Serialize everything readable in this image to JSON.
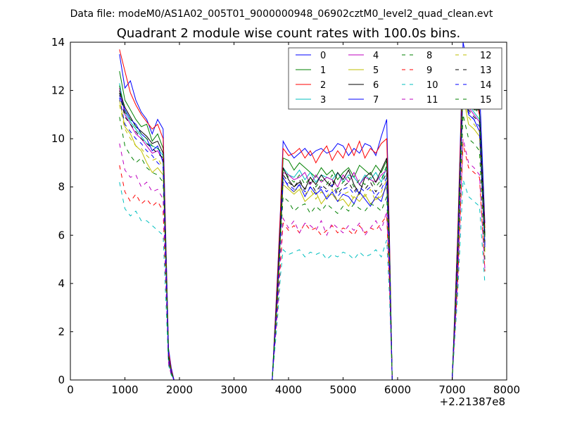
{
  "header": "Data file: modeM0/AS1A02_005T01_9000000948_06902cztM0_level2_quad_clean.evt",
  "chart_data": {
    "type": "line",
    "title": "Quadrant 2 module wise count rates with 100.0s bins.",
    "xlabel": "",
    "ylabel": "",
    "x_offset_label": "+2.21387e8",
    "xlim": [
      0,
      8000
    ],
    "ylim": [
      0,
      14
    ],
    "xticks": [
      "0",
      "1000",
      "2000",
      "3000",
      "4000",
      "5000",
      "6000",
      "7000",
      "8000"
    ],
    "yticks": [
      "0",
      "2",
      "4",
      "6",
      "8",
      "10",
      "12",
      "14"
    ],
    "legend_position": "top-right",
    "x": [
      900,
      1000,
      1100,
      1200,
      1300,
      1400,
      1500,
      1600,
      1700,
      1800,
      1850,
      1900,
      2000,
      3700,
      3800,
      3850,
      3900,
      4000,
      4100,
      4200,
      4300,
      4400,
      4500,
      4600,
      4700,
      4800,
      4900,
      5000,
      5100,
      5200,
      5300,
      5400,
      5500,
      5600,
      5700,
      5800,
      5850,
      5900,
      6000,
      7000,
      7100,
      7200,
      7300,
      7400,
      7500,
      7600
    ],
    "series": [
      {
        "name": "0",
        "color": "#0000ff",
        "dash": "solid",
        "values": [
          13.5,
          12.1,
          12.4,
          11.6,
          11.1,
          10.8,
          10.2,
          10.8,
          10.4,
          1.3,
          0.5,
          0,
          0,
          0,
          4.5,
          7.0,
          9.9,
          9.5,
          9.2,
          9.4,
          9.6,
          9.3,
          9.5,
          9.6,
          9.4,
          9.5,
          9.8,
          9.7,
          9.3,
          9.6,
          9.4,
          9.8,
          9.7,
          9.3,
          10.1,
          10.8,
          6.0,
          0,
          0,
          0,
          6.0,
          14.0,
          12.9,
          12.4,
          12.2,
          6.5
        ]
      },
      {
        "name": "1",
        "color": "#008000",
        "dash": "solid",
        "values": [
          12.8,
          11.6,
          11.2,
          10.8,
          10.5,
          10.6,
          9.9,
          10.2,
          9.6,
          1.0,
          0.3,
          0,
          0,
          0,
          4.0,
          6.6,
          9.2,
          9.1,
          8.7,
          9.0,
          8.8,
          8.6,
          8.4,
          8.8,
          8.5,
          8.7,
          8.3,
          8.6,
          8.8,
          8.4,
          8.9,
          8.7,
          8.5,
          8.9,
          8.6,
          9.1,
          5.5,
          0,
          0,
          0,
          5.5,
          13.1,
          11.6,
          11.3,
          11.2,
          6.0
        ]
      },
      {
        "name": "2",
        "color": "#ff0000",
        "dash": "solid",
        "values": [
          13.7,
          12.8,
          11.9,
          11.4,
          11.0,
          10.7,
          10.4,
          10.6,
          10.0,
          1.2,
          0.4,
          0,
          0,
          0,
          4.3,
          6.9,
          9.6,
          9.3,
          9.4,
          9.6,
          9.2,
          9.5,
          9.0,
          9.4,
          9.7,
          9.1,
          9.5,
          9.2,
          9.8,
          9.3,
          9.9,
          9.2,
          9.6,
          9.4,
          9.8,
          10.0,
          5.8,
          0,
          0,
          0,
          5.8,
          13.6,
          12.1,
          11.8,
          11.0,
          6.3
        ]
      },
      {
        "name": "3",
        "color": "#00bfbf",
        "dash": "solid",
        "values": [
          12.3,
          11.1,
          10.7,
          10.4,
          10.1,
          9.8,
          9.7,
          9.6,
          9.3,
          0.9,
          0.3,
          0,
          0,
          0,
          3.8,
          6.3,
          8.8,
          8.5,
          8.4,
          8.7,
          8.3,
          8.6,
          8.2,
          8.5,
          8.4,
          8.3,
          8.6,
          8.2,
          8.5,
          8.4,
          8.1,
          8.5,
          8.3,
          8.6,
          8.2,
          8.8,
          5.2,
          0,
          0,
          0,
          5.2,
          12.6,
          11.4,
          11.1,
          10.8,
          5.7
        ]
      },
      {
        "name": "4",
        "color": "#bf00bf",
        "dash": "solid",
        "values": [
          12.1,
          11.0,
          10.6,
          10.2,
          10.0,
          9.7,
          9.4,
          9.5,
          9.1,
          0.9,
          0.3,
          0,
          0,
          0,
          3.7,
          6.2,
          8.6,
          8.5,
          8.3,
          8.4,
          8.6,
          8.1,
          8.5,
          8.2,
          8.4,
          8.3,
          8.0,
          8.5,
          8.2,
          8.6,
          8.1,
          8.4,
          8.3,
          8.2,
          8.5,
          8.7,
          5.2,
          0,
          0,
          0,
          5.2,
          12.4,
          11.3,
          11.0,
          10.7,
          5.6
        ]
      },
      {
        "name": "5",
        "color": "#bfbf00",
        "dash": "solid",
        "values": [
          11.6,
          10.5,
          10.2,
          9.7,
          9.5,
          9.0,
          8.6,
          8.8,
          8.5,
          0.8,
          0.3,
          0,
          0,
          0,
          3.4,
          5.8,
          8.1,
          7.9,
          7.7,
          7.9,
          7.4,
          7.6,
          7.8,
          7.3,
          7.6,
          7.7,
          7.4,
          7.5,
          7.2,
          7.6,
          7.4,
          7.7,
          7.3,
          7.5,
          7.6,
          8.0,
          4.8,
          0,
          0,
          0,
          4.8,
          11.8,
          10.6,
          10.4,
          10.1,
          5.3
        ]
      },
      {
        "name": "6",
        "color": "#000000",
        "dash": "solid",
        "values": [
          12.0,
          11.3,
          10.9,
          10.5,
          10.3,
          10.1,
          9.8,
          9.9,
          9.4,
          1.0,
          0.3,
          0,
          0,
          0,
          3.9,
          6.4,
          8.8,
          8.3,
          8.0,
          8.2,
          7.9,
          8.4,
          8.1,
          8.5,
          8.2,
          8.0,
          8.6,
          8.3,
          8.7,
          8.1,
          7.7,
          8.4,
          8.6,
          8.2,
          8.7,
          9.2,
          5.4,
          0,
          0,
          0,
          5.4,
          12.8,
          11.5,
          11.2,
          11.2,
          6.0
        ]
      },
      {
        "name": "7",
        "color": "#0000ff",
        "dash": "solid",
        "values": [
          11.8,
          11.2,
          10.8,
          10.6,
          10.2,
          10.0,
          9.5,
          9.7,
          9.0,
          0.9,
          0.3,
          0,
          0,
          0,
          3.6,
          6.0,
          8.4,
          8.0,
          7.8,
          8.1,
          7.6,
          8.0,
          7.7,
          7.9,
          7.5,
          7.8,
          7.4,
          7.7,
          7.6,
          7.3,
          7.8,
          7.5,
          7.2,
          7.6,
          7.4,
          8.2,
          5.0,
          0,
          0,
          0,
          5.0,
          12.2,
          11.0,
          10.8,
          10.3,
          5.5
        ]
      },
      {
        "name": "8",
        "color": "#008000",
        "dash": "dashed",
        "values": [
          10.9,
          9.7,
          9.3,
          9.0,
          9.2,
          8.8,
          8.6,
          8.5,
          8.2,
          0.8,
          0.2,
          0,
          0,
          0,
          3.3,
          5.6,
          7.6,
          7.4,
          7.0,
          7.2,
          7.3,
          6.9,
          7.2,
          7.0,
          7.3,
          7.1,
          6.9,
          7.2,
          7.0,
          7.3,
          7.1,
          7.0,
          7.3,
          7.2,
          7.0,
          7.6,
          4.6,
          0,
          0,
          0,
          4.6,
          11.0,
          10.0,
          9.8,
          9.5,
          5.0
        ]
      },
      {
        "name": "9",
        "color": "#ff0000",
        "dash": "dashed",
        "values": [
          8.9,
          7.8,
          7.4,
          7.7,
          7.3,
          7.5,
          7.2,
          7.4,
          7.0,
          0.7,
          0.2,
          0,
          0,
          0,
          2.9,
          4.7,
          6.5,
          6.2,
          6.4,
          6.1,
          6.5,
          6.2,
          6.3,
          6.0,
          6.2,
          6.4,
          6.1,
          6.3,
          6.2,
          6.0,
          6.4,
          6.1,
          6.3,
          6.2,
          6.5,
          6.8,
          4.0,
          0,
          0,
          0,
          4.0,
          9.8,
          8.8,
          8.6,
          8.4,
          4.5
        ]
      },
      {
        "name": "10",
        "color": "#00bfbf",
        "dash": "dashed",
        "values": [
          8.2,
          7.1,
          6.8,
          7.0,
          6.6,
          6.6,
          6.4,
          6.2,
          6.0,
          0.6,
          0.2,
          0,
          0,
          0,
          2.6,
          4.3,
          5.4,
          5.2,
          5.3,
          5.4,
          5.1,
          5.3,
          5.2,
          5.3,
          5.0,
          5.2,
          5.1,
          5.3,
          5.2,
          5.0,
          5.3,
          5.1,
          5.2,
          5.4,
          5.1,
          5.8,
          3.5,
          0,
          0,
          0,
          3.5,
          8.3,
          7.6,
          7.4,
          7.2,
          4.0
        ]
      },
      {
        "name": "11",
        "color": "#bf00bf",
        "dash": "dashed",
        "values": [
          9.8,
          8.7,
          8.4,
          8.5,
          8.0,
          8.2,
          7.8,
          7.9,
          7.5,
          0.7,
          0.2,
          0,
          0,
          0,
          3.0,
          5.0,
          6.7,
          6.3,
          6.6,
          6.1,
          6.5,
          6.4,
          6.2,
          6.6,
          6.0,
          6.5,
          6.3,
          6.1,
          6.4,
          6.2,
          6.5,
          6.0,
          6.3,
          6.6,
          6.2,
          7.0,
          4.1,
          0,
          0,
          0,
          4.1,
          10.0,
          9.0,
          8.8,
          8.5,
          4.6
        ]
      },
      {
        "name": "12",
        "color": "#bfbf00",
        "dash": "dashed",
        "values": [
          11.4,
          10.4,
          10.0,
          9.7,
          9.6,
          9.3,
          9.1,
          9.2,
          8.8,
          0.9,
          0.3,
          0,
          0,
          0,
          3.5,
          5.9,
          8.2,
          8.0,
          7.8,
          8.0,
          7.7,
          7.9,
          7.5,
          7.8,
          7.6,
          7.9,
          7.4,
          7.7,
          7.8,
          7.5,
          7.7,
          7.6,
          7.9,
          7.4,
          7.8,
          8.3,
          5.0,
          0,
          0,
          0,
          5.0,
          12.0,
          10.9,
          10.6,
          10.3,
          5.4
        ]
      },
      {
        "name": "13",
        "color": "#000000",
        "dash": "dashed",
        "values": [
          11.9,
          10.9,
          10.6,
          10.3,
          10.0,
          9.8,
          9.6,
          9.4,
          9.2,
          0.9,
          0.3,
          0,
          0,
          0,
          3.7,
          6.1,
          8.5,
          8.2,
          8.0,
          8.3,
          7.9,
          8.2,
          7.8,
          8.1,
          7.9,
          8.3,
          7.7,
          8.0,
          8.2,
          7.8,
          8.1,
          7.9,
          8.2,
          7.8,
          8.1,
          8.6,
          5.1,
          0,
          0,
          0,
          5.1,
          12.5,
          11.2,
          10.9,
          10.7,
          5.7
        ]
      },
      {
        "name": "14",
        "color": "#0000ff",
        "dash": "dashed",
        "values": [
          11.7,
          10.6,
          10.3,
          10.0,
          9.8,
          9.5,
          9.3,
          9.0,
          8.8,
          0.9,
          0.3,
          0,
          0,
          0,
          3.6,
          6.0,
          8.3,
          8.1,
          7.9,
          8.1,
          7.8,
          8.0,
          7.7,
          8.0,
          7.8,
          8.1,
          7.6,
          7.9,
          8.0,
          7.7,
          8.0,
          7.8,
          8.0,
          7.6,
          7.9,
          8.4,
          5.0,
          0,
          0,
          0,
          5.0,
          12.3,
          11.1,
          10.8,
          10.5,
          5.6
        ]
      },
      {
        "name": "15",
        "color": "#008000",
        "dash": "dashed",
        "values": [
          12.2,
          11.1,
          10.8,
          10.5,
          10.2,
          10.0,
          9.7,
          9.6,
          9.4,
          1.0,
          0.3,
          0,
          0,
          0,
          3.8,
          6.2,
          8.7,
          8.4,
          8.2,
          8.5,
          8.1,
          8.4,
          8.0,
          8.3,
          8.1,
          8.5,
          7.9,
          8.2,
          8.4,
          8.0,
          8.3,
          8.1,
          8.4,
          8.0,
          8.3,
          8.9,
          5.3,
          0,
          0,
          0,
          5.3,
          12.9,
          11.6,
          11.3,
          11.0,
          5.9
        ]
      }
    ]
  }
}
